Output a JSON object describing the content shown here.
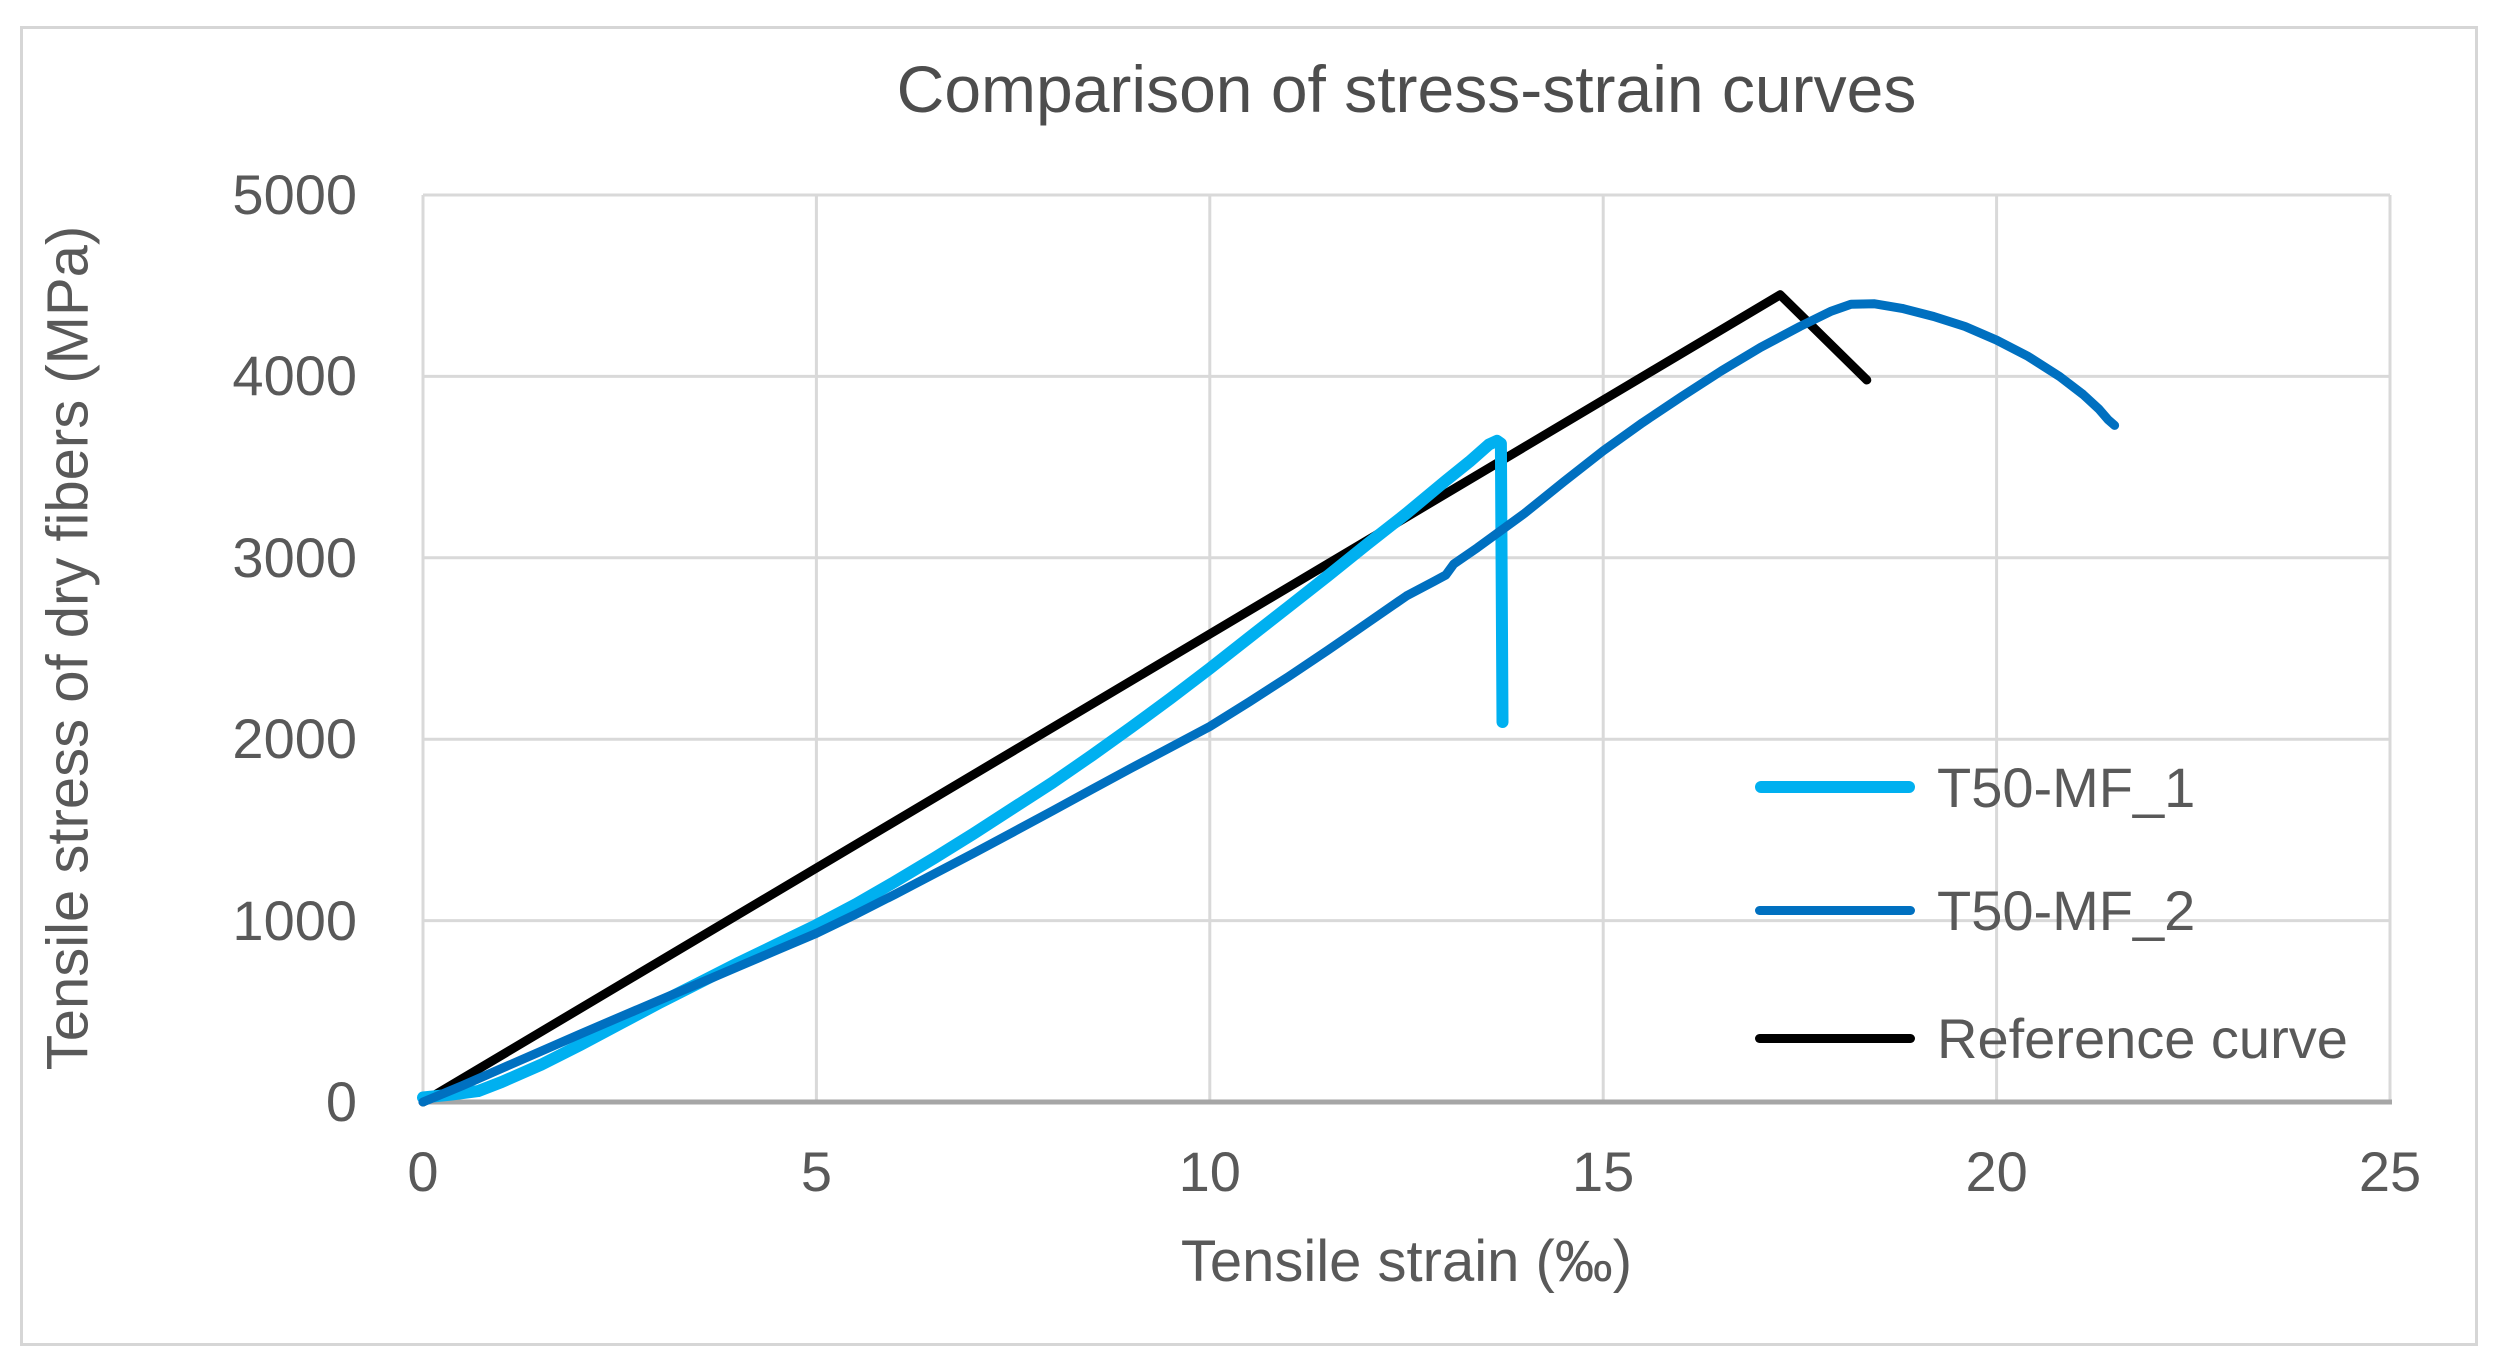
{
  "figure": {
    "background": "#ffffff",
    "border_color": "#d6d6d6"
  },
  "chart_data": {
    "type": "line",
    "title": "Comparison of stress-strain curves",
    "xlabel": "Tensile strain (‰)",
    "ylabel": "Tensile stress of dry fibers (MPa)",
    "xlim": [
      0,
      25
    ],
    "ylim": [
      0,
      5000
    ],
    "x_ticks": [
      0,
      5,
      10,
      15,
      20,
      25
    ],
    "y_ticks": [
      0,
      1000,
      2000,
      3000,
      4000,
      5000
    ],
    "grid": true,
    "legend_position": "inside-right-lower",
    "series": [
      {
        "name": "T50-MF_1",
        "color": "#00b0f0",
        "width": 12,
        "z": 1,
        "points": [
          [
            0,
            25
          ],
          [
            0.35,
            40
          ],
          [
            0.7,
            60
          ],
          [
            1,
            110
          ],
          [
            1.5,
            205
          ],
          [
            2,
            315
          ],
          [
            2.5,
            430
          ],
          [
            3,
            545
          ],
          [
            3.5,
            655
          ],
          [
            4,
            765
          ],
          [
            4.5,
            870
          ],
          [
            5,
            975
          ],
          [
            5.5,
            1090
          ],
          [
            6,
            1215
          ],
          [
            6.5,
            1345
          ],
          [
            7,
            1480
          ],
          [
            7.5,
            1620
          ],
          [
            8,
            1760
          ],
          [
            8.5,
            1910
          ],
          [
            9,
            2065
          ],
          [
            9.5,
            2225
          ],
          [
            10,
            2390
          ],
          [
            10.5,
            2560
          ],
          [
            11,
            2730
          ],
          [
            11.5,
            2900
          ],
          [
            12,
            3075
          ],
          [
            12.5,
            3245
          ],
          [
            13,
            3425
          ],
          [
            13.3,
            3530
          ],
          [
            13.55,
            3625
          ],
          [
            13.65,
            3645
          ],
          [
            13.7,
            3630
          ],
          [
            13.72,
            2095
          ]
        ]
      },
      {
        "name": "T50-MF_2",
        "color": "#0070c0",
        "width": 9,
        "z": 2,
        "points": [
          [
            0,
            0
          ],
          [
            0.5,
            90
          ],
          [
            1,
            185
          ],
          [
            1.5,
            280
          ],
          [
            2,
            375
          ],
          [
            2.5,
            468
          ],
          [
            3,
            560
          ],
          [
            3.5,
            652
          ],
          [
            4,
            745
          ],
          [
            4.5,
            838
          ],
          [
            5,
            930
          ],
          [
            5.5,
            1035
          ],
          [
            6,
            1145
          ],
          [
            6.5,
            1258
          ],
          [
            7,
            1372
          ],
          [
            7.5,
            1488
          ],
          [
            8,
            1605
          ],
          [
            8.5,
            1723
          ],
          [
            9,
            1840
          ],
          [
            9.5,
            1955
          ],
          [
            10,
            2070
          ],
          [
            10.5,
            2205
          ],
          [
            11,
            2345
          ],
          [
            11.5,
            2490
          ],
          [
            12,
            2640
          ],
          [
            12.5,
            2790
          ],
          [
            12.85,
            2870
          ],
          [
            13,
            2905
          ],
          [
            13.1,
            2965
          ],
          [
            13.4,
            3055
          ],
          [
            14,
            3245
          ],
          [
            14.5,
            3420
          ],
          [
            15,
            3590
          ],
          [
            15.5,
            3745
          ],
          [
            16,
            3890
          ],
          [
            16.5,
            4030
          ],
          [
            17,
            4160
          ],
          [
            17.5,
            4275
          ],
          [
            17.9,
            4360
          ],
          [
            18.15,
            4398
          ],
          [
            18.45,
            4400
          ],
          [
            18.8,
            4375
          ],
          [
            19.2,
            4330
          ],
          [
            19.6,
            4275
          ],
          [
            20,
            4200
          ],
          [
            20.4,
            4110
          ],
          [
            20.8,
            4000
          ],
          [
            21.1,
            3900
          ],
          [
            21.3,
            3820
          ],
          [
            21.42,
            3760
          ],
          [
            21.5,
            3730
          ]
        ]
      },
      {
        "name": "Reference curve",
        "color": "#000000",
        "width": 9,
        "z": 0,
        "points": [
          [
            0,
            0
          ],
          [
            17.25,
            4450
          ],
          [
            18.35,
            3980
          ]
        ]
      }
    ]
  },
  "colors": {
    "gridline": "#d9d9d9",
    "axis_line": "#a6a6a6",
    "tick_text": "#595959",
    "title_text": "#4d4d4d"
  }
}
